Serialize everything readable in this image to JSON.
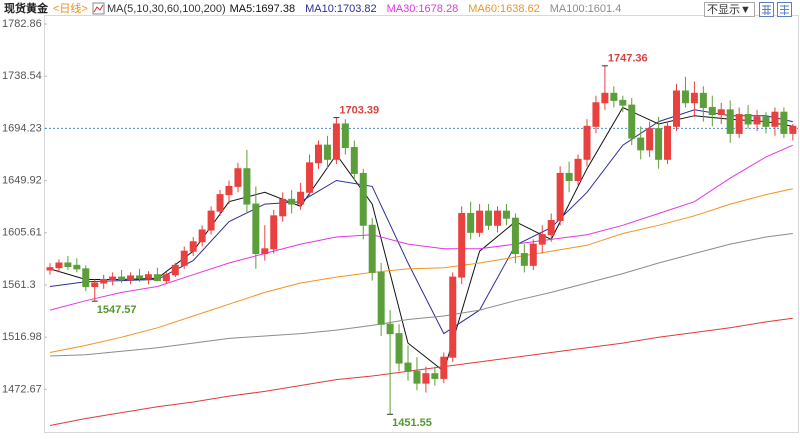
{
  "chart_data": {
    "type": "candlestick",
    "symbol": "现货黄金",
    "period": "<日线>",
    "ma_label": "MA(5,10,30,60,100,200)",
    "display_toggle": "不显示▼",
    "ylim": [
      1438.2,
      1790.5
    ],
    "yticks": [
      1782.86,
      1738.54,
      1694.23,
      1649.92,
      1605.61,
      1561.3,
      1516.98,
      1472.67
    ],
    "price_line": 1694.23,
    "up_color": "#e8413f",
    "down_color": "#5c9e3a",
    "open": [
      1574,
      1576,
      1580,
      1578,
      1575,
      1560,
      1563,
      1566,
      1568,
      1566,
      1569,
      1567,
      1570,
      1565,
      1570,
      1578,
      1590,
      1598,
      1608,
      1624,
      1638,
      1645,
      1660,
      1630,
      1588,
      1592,
      1620,
      1634,
      1630,
      1640,
      1665,
      1680,
      1668,
      1698,
      1678,
      1656,
      1612,
      1572,
      1528,
      1520,
      1495,
      1488,
      1478,
      1486,
      1482,
      1500,
      1568,
      1622,
      1606,
      1624,
      1612,
      1624,
      1618,
      1588,
      1578,
      1596,
      1604,
      1616,
      1656,
      1650,
      1668,
      1696,
      1716,
      1724,
      1718,
      1714,
      1686,
      1676,
      1694,
      1668,
      1696,
      1726,
      1716,
      1724,
      1712,
      1706,
      1710,
      1690,
      1706,
      1698,
      1704,
      1696,
      1708,
      1690
    ],
    "high": [
      1580,
      1583,
      1586,
      1584,
      1578,
      1566,
      1570,
      1572,
      1574,
      1572,
      1575,
      1573,
      1576,
      1572,
      1580,
      1594,
      1602,
      1612,
      1628,
      1642,
      1650,
      1665,
      1676,
      1645,
      1612,
      1625,
      1640,
      1642,
      1648,
      1672,
      1684,
      1688,
      1703.39,
      1702,
      1684,
      1660,
      1618,
      1580,
      1540,
      1528,
      1510,
      1500,
      1492,
      1492,
      1504,
      1572,
      1628,
      1632,
      1630,
      1630,
      1628,
      1630,
      1622,
      1596,
      1600,
      1612,
      1622,
      1662,
      1666,
      1672,
      1702,
      1722,
      1747.36,
      1730,
      1722,
      1720,
      1696,
      1700,
      1704,
      1700,
      1732,
      1738,
      1734,
      1730,
      1722,
      1716,
      1718,
      1712,
      1714,
      1710,
      1708,
      1712,
      1712,
      1698
    ],
    "low": [
      1570,
      1572,
      1574,
      1572,
      1556,
      1547.57,
      1558,
      1561,
      1563,
      1562,
      1564,
      1562,
      1565,
      1562,
      1568,
      1575,
      1586,
      1594,
      1604,
      1620,
      1630,
      1640,
      1622,
      1575,
      1582,
      1588,
      1615,
      1622,
      1625,
      1636,
      1660,
      1660,
      1664,
      1672,
      1650,
      1600,
      1565,
      1518,
      1451.55,
      1488,
      1480,
      1472,
      1470,
      1476,
      1478,
      1496,
      1562,
      1600,
      1602,
      1608,
      1606,
      1612,
      1580,
      1572,
      1574,
      1588,
      1598,
      1612,
      1640,
      1646,
      1662,
      1690,
      1710,
      1712,
      1708,
      1680,
      1668,
      1670,
      1660,
      1664,
      1692,
      1712,
      1704,
      1700,
      1696,
      1698,
      1682,
      1686,
      1694,
      1692,
      1690,
      1688,
      1686,
      1684
    ],
    "close": [
      1576,
      1580,
      1577,
      1575,
      1560,
      1563,
      1566,
      1568,
      1566,
      1569,
      1567,
      1570,
      1565,
      1570,
      1578,
      1590,
      1598,
      1608,
      1624,
      1638,
      1645,
      1660,
      1630,
      1588,
      1592,
      1620,
      1634,
      1630,
      1640,
      1665,
      1680,
      1668,
      1698,
      1678,
      1656,
      1612,
      1572,
      1528,
      1520,
      1495,
      1488,
      1478,
      1486,
      1482,
      1500,
      1568,
      1622,
      1606,
      1624,
      1612,
      1624,
      1618,
      1588,
      1578,
      1596,
      1604,
      1616,
      1656,
      1650,
      1668,
      1696,
      1716,
      1724,
      1718,
      1714,
      1686,
      1676,
      1694,
      1668,
      1696,
      1726,
      1716,
      1724,
      1712,
      1706,
      1710,
      1690,
      1706,
      1698,
      1704,
      1696,
      1708,
      1690,
      1696
    ],
    "ma_x": [
      0,
      4,
      8,
      12,
      16,
      20,
      24,
      28,
      32,
      36,
      40,
      44,
      48,
      52,
      56,
      60,
      64,
      68,
      72,
      76,
      80,
      83
    ],
    "series": [
      {
        "name": "MA5:1697.38",
        "color": "#111111",
        "values": [
          1575,
          1566,
          1566,
          1567,
          1590,
          1632,
          1640,
          1628,
          1672,
          1630,
          1512,
          1488,
          1590,
          1615,
          1600,
          1660,
          1712,
          1698,
          1705,
          1702,
          1700,
          1696
        ]
      },
      {
        "name": "MA10:1703.82",
        "color": "#2b2f9c",
        "values": [
          1560,
          1564,
          1565,
          1566,
          1582,
          1615,
          1630,
          1632,
          1650,
          1645,
          1580,
          1520,
          1540,
          1595,
          1610,
          1640,
          1680,
          1700,
          1710,
          1705,
          1705,
          1700
        ]
      },
      {
        "name": "MA30:1678.28",
        "color": "#e436e4",
        "values": [
          1540,
          1548,
          1555,
          1560,
          1570,
          1580,
          1588,
          1596,
          1602,
          1604,
          1596,
          1592,
          1592,
          1596,
          1600,
          1604,
          1612,
          1622,
          1632,
          1652,
          1670,
          1680
        ]
      },
      {
        "name": "MA60:1638.62",
        "color": "#f39322",
        "values": [
          1504,
          1510,
          1517,
          1525,
          1535,
          1545,
          1555,
          1563,
          1568,
          1572,
          1575,
          1576,
          1580,
          1585,
          1590,
          1595,
          1605,
          1612,
          1620,
          1630,
          1638,
          1643
        ]
      },
      {
        "name": "MA100:1601.4",
        "color": "#8c8c8c",
        "values": [
          1501,
          1502,
          1505,
          1508,
          1512,
          1516,
          1518,
          1520,
          1523,
          1527,
          1532,
          1535,
          1540,
          1548,
          1555,
          1563,
          1571,
          1580,
          1588,
          1596,
          1602,
          1605
        ]
      },
      {
        "color": "#e03b3b",
        "values": [
          1442,
          1448,
          1453,
          1458,
          1462,
          1467,
          1471,
          1476,
          1481,
          1484,
          1488,
          1492,
          1496,
          1500,
          1504,
          1508,
          1512,
          1517,
          1521,
          1525,
          1530,
          1533
        ]
      }
    ]
  }
}
